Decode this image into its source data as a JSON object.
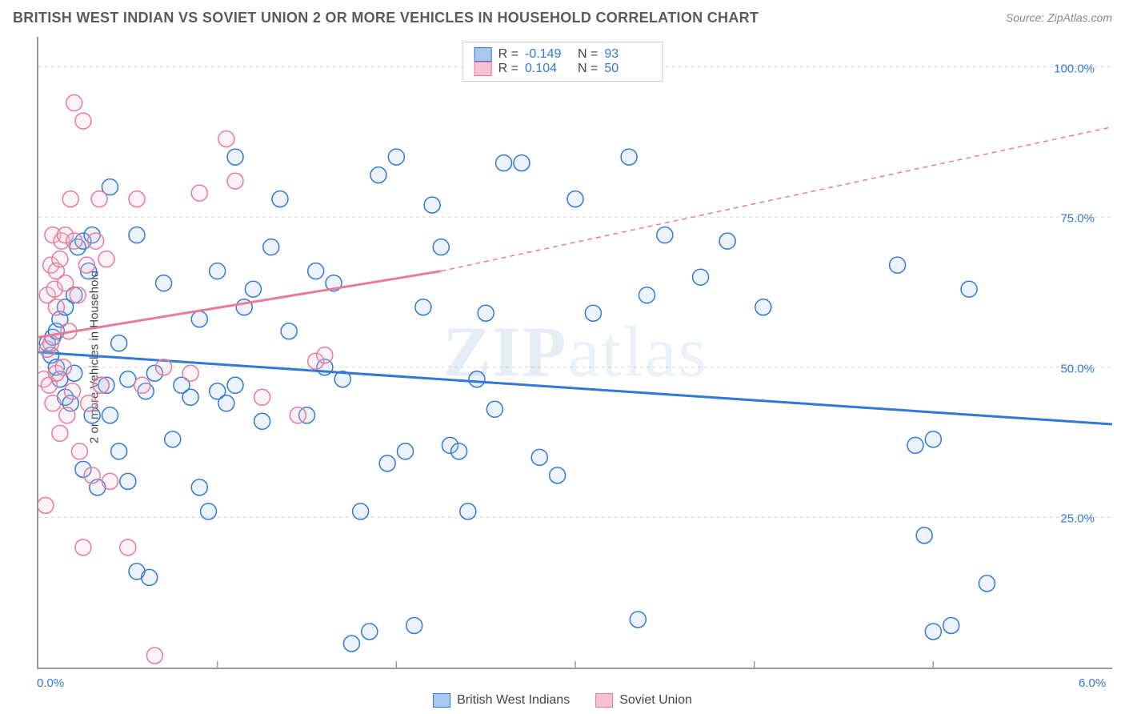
{
  "header": {
    "title": "BRITISH WEST INDIAN VS SOVIET UNION 2 OR MORE VEHICLES IN HOUSEHOLD CORRELATION CHART",
    "source": "Source: ZipAtlas.com"
  },
  "chart": {
    "type": "scatter",
    "ylabel": "2 or more Vehicles in Household",
    "xlim": [
      0,
      6.0
    ],
    "ylim": [
      0,
      105
    ],
    "xticks": [
      {
        "v": 0.0,
        "label": "0.0%"
      },
      {
        "v": 6.0,
        "label": "6.0%"
      }
    ],
    "xtick_marks": [
      1.0,
      2.0,
      3.0,
      4.0,
      5.0
    ],
    "yticks": [
      {
        "v": 25,
        "label": "25.0%"
      },
      {
        "v": 50,
        "label": "50.0%"
      },
      {
        "v": 75,
        "label": "75.0%"
      },
      {
        "v": 100,
        "label": "100.0%"
      }
    ],
    "grid_color": "#d8d8d8",
    "background_color": "#ffffff",
    "axis_color": "#999999",
    "label_fontsize": 15,
    "tick_color": "#3278d6",
    "watermark_text_bold": "ZIP",
    "watermark_text_light": "atlas",
    "marker_radius": 10,
    "marker_stroke_width": 1.5,
    "marker_fill_opacity": 0.22,
    "trendline_width": 3,
    "trendline_dash_extrapolate": "6,5",
    "series": [
      {
        "name": "British West Indians",
        "stroke": "#3278d6",
        "fill": "#a8c8f0",
        "R": "-0.149",
        "N": "93",
        "trend": {
          "x1": 0.0,
          "y1": 52.5,
          "x2": 6.0,
          "y2": 40.5,
          "extrapolate_from": 6.1
        },
        "points": [
          [
            0.05,
            54
          ],
          [
            0.07,
            52
          ],
          [
            0.08,
            55
          ],
          [
            0.1,
            50
          ],
          [
            0.1,
            56
          ],
          [
            0.12,
            48
          ],
          [
            0.12,
            58
          ],
          [
            0.15,
            45
          ],
          [
            0.15,
            60
          ],
          [
            0.18,
            44
          ],
          [
            0.2,
            49
          ],
          [
            0.2,
            62
          ],
          [
            0.22,
            70
          ],
          [
            0.25,
            33
          ],
          [
            0.25,
            71
          ],
          [
            0.28,
            66
          ],
          [
            0.3,
            42
          ],
          [
            0.3,
            72
          ],
          [
            0.35,
            47
          ],
          [
            0.4,
            42
          ],
          [
            0.4,
            80
          ],
          [
            0.45,
            36
          ],
          [
            0.45,
            54
          ],
          [
            0.5,
            31
          ],
          [
            0.5,
            48
          ],
          [
            0.55,
            16
          ],
          [
            0.55,
            72
          ],
          [
            0.6,
            46
          ],
          [
            0.65,
            49
          ],
          [
            0.7,
            64
          ],
          [
            0.75,
            38
          ],
          [
            0.8,
            47
          ],
          [
            0.85,
            45
          ],
          [
            0.9,
            30
          ],
          [
            0.95,
            26
          ],
          [
            1.0,
            46
          ],
          [
            1.0,
            66
          ],
          [
            1.05,
            44
          ],
          [
            1.1,
            85
          ],
          [
            1.1,
            47
          ],
          [
            1.15,
            60
          ],
          [
            1.2,
            63
          ],
          [
            1.25,
            41
          ],
          [
            1.3,
            70
          ],
          [
            1.35,
            78
          ],
          [
            1.4,
            56
          ],
          [
            1.5,
            42
          ],
          [
            1.55,
            66
          ],
          [
            1.6,
            50
          ],
          [
            1.65,
            64
          ],
          [
            1.7,
            48
          ],
          [
            1.8,
            26
          ],
          [
            1.85,
            6
          ],
          [
            1.9,
            82
          ],
          [
            1.95,
            34
          ],
          [
            2.0,
            85
          ],
          [
            2.05,
            36
          ],
          [
            2.1,
            7
          ],
          [
            2.15,
            60
          ],
          [
            2.2,
            77
          ],
          [
            2.25,
            70
          ],
          [
            2.3,
            37
          ],
          [
            2.4,
            26
          ],
          [
            2.45,
            48
          ],
          [
            2.5,
            59
          ],
          [
            2.55,
            43
          ],
          [
            2.6,
            84
          ],
          [
            2.8,
            35
          ],
          [
            2.9,
            32
          ],
          [
            3.0,
            78
          ],
          [
            3.1,
            59
          ],
          [
            3.3,
            85
          ],
          [
            3.35,
            8
          ],
          [
            3.4,
            62
          ],
          [
            3.5,
            72
          ],
          [
            3.7,
            65
          ],
          [
            3.85,
            71
          ],
          [
            4.05,
            60
          ],
          [
            4.8,
            67
          ],
          [
            4.9,
            37
          ],
          [
            4.95,
            22
          ],
          [
            5.0,
            6
          ],
          [
            5.1,
            7
          ],
          [
            5.2,
            63
          ],
          [
            5.3,
            14
          ],
          [
            5.0,
            38
          ],
          [
            1.75,
            4
          ],
          [
            2.35,
            36
          ],
          [
            0.62,
            15
          ],
          [
            0.33,
            30
          ],
          [
            2.7,
            84
          ],
          [
            0.38,
            47
          ],
          [
            0.9,
            58
          ]
        ]
      },
      {
        "name": "Soviet Union",
        "stroke": "#e87a9a",
        "fill": "#f7c2d0",
        "R": "0.104",
        "N": "50",
        "trend": {
          "x1": 0.0,
          "y1": 55.0,
          "x2": 2.25,
          "y2": 66.0,
          "extrapolate_from": 2.25,
          "ext_x2": 6.0,
          "ext_y2": 90.0
        },
        "points": [
          [
            0.03,
            48
          ],
          [
            0.04,
            27
          ],
          [
            0.05,
            53
          ],
          [
            0.05,
            62
          ],
          [
            0.06,
            47
          ],
          [
            0.07,
            54
          ],
          [
            0.07,
            67
          ],
          [
            0.08,
            72
          ],
          [
            0.08,
            44
          ],
          [
            0.09,
            63
          ],
          [
            0.1,
            60
          ],
          [
            0.1,
            66
          ],
          [
            0.1,
            49
          ],
          [
            0.12,
            68
          ],
          [
            0.12,
            39
          ],
          [
            0.13,
            71
          ],
          [
            0.14,
            50
          ],
          [
            0.15,
            64
          ],
          [
            0.15,
            72
          ],
          [
            0.16,
            42
          ],
          [
            0.17,
            56
          ],
          [
            0.18,
            78
          ],
          [
            0.19,
            46
          ],
          [
            0.2,
            94
          ],
          [
            0.2,
            71
          ],
          [
            0.22,
            62
          ],
          [
            0.23,
            36
          ],
          [
            0.25,
            20
          ],
          [
            0.25,
            91
          ],
          [
            0.27,
            67
          ],
          [
            0.28,
            44
          ],
          [
            0.3,
            32
          ],
          [
            0.32,
            71
          ],
          [
            0.34,
            78
          ],
          [
            0.35,
            47
          ],
          [
            0.38,
            68
          ],
          [
            0.4,
            31
          ],
          [
            0.5,
            20
          ],
          [
            0.55,
            78
          ],
          [
            0.58,
            47
          ],
          [
            0.65,
            2
          ],
          [
            0.7,
            50
          ],
          [
            0.85,
            49
          ],
          [
            0.9,
            79
          ],
          [
            1.05,
            88
          ],
          [
            1.1,
            81
          ],
          [
            1.25,
            45
          ],
          [
            1.45,
            42
          ],
          [
            1.55,
            51
          ],
          [
            1.6,
            52
          ]
        ]
      }
    ]
  },
  "legend_top": {
    "rows": [
      {
        "swatch_stroke": "#3278d6",
        "swatch_fill": "#a8c8f0",
        "R": "-0.149",
        "N": "93"
      },
      {
        "swatch_stroke": "#e87a9a",
        "swatch_fill": "#f7c2d0",
        "R": "0.104",
        "N": "50"
      }
    ],
    "R_label": "R =",
    "N_label": "N ="
  },
  "legend_bottom": {
    "items": [
      {
        "label": "British West Indians",
        "stroke": "#3278d6",
        "fill": "#a8c8f0"
      },
      {
        "label": "Soviet Union",
        "stroke": "#e87a9a",
        "fill": "#f7c2d0"
      }
    ]
  }
}
